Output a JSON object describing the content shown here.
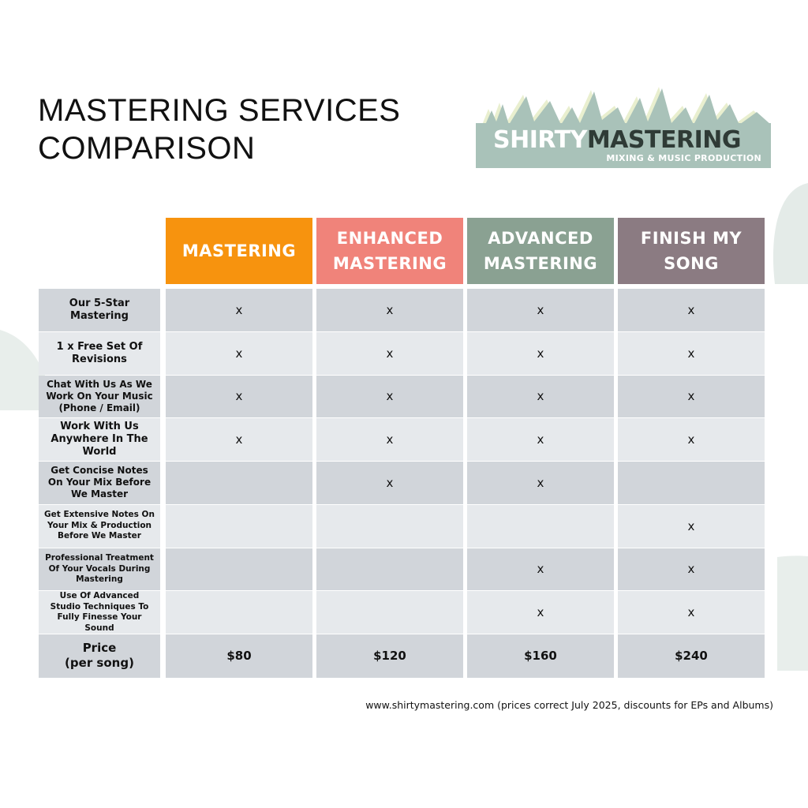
{
  "title_lines": [
    "MASTERING SERVICES",
    "COMPARISON"
  ],
  "logo": {
    "name_light": "SHIRTY",
    "name_dark": "MASTERING",
    "tagline": "MIXING & MUSIC PRODUCTION",
    "colors": {
      "box": "#a9c2b9",
      "peaks": "#a9c2b9",
      "peak_shadow": "#e9efcf",
      "dark_text": "#2f3b36"
    }
  },
  "columns": [
    {
      "lines": [
        "MASTERING"
      ],
      "color": "#f7930e"
    },
    {
      "lines": [
        "ENHANCED",
        "MASTERING"
      ],
      "color": "#f0837a"
    },
    {
      "lines": [
        "ADVANCED",
        "MASTERING"
      ],
      "color": "#8aa192"
    },
    {
      "lines": [
        "FINISH MY",
        "SONG"
      ],
      "color": "#8b7b82"
    }
  ],
  "rows": [
    {
      "label_lines": [
        "Our 5-Star",
        "Mastering"
      ],
      "marks": [
        "x",
        "x",
        "x",
        "x"
      ]
    },
    {
      "label_lines": [
        "1 x Free Set Of",
        "Revisions"
      ],
      "marks": [
        "x",
        "x",
        "x",
        "x"
      ]
    },
    {
      "label_lines": [
        "Chat With Us As We",
        "Work On Your Music",
        "(Phone / Email)"
      ],
      "marks": [
        "x",
        "x",
        "x",
        "x"
      ]
    },
    {
      "label_lines": [
        "Work With Us",
        "Anywhere In The",
        "World"
      ],
      "marks": [
        "x",
        "x",
        "x",
        "x"
      ]
    },
    {
      "label_lines": [
        "Get Concise Notes",
        "On Your Mix Before",
        "We Master"
      ],
      "marks": [
        "",
        "x",
        "x",
        ""
      ]
    },
    {
      "label_lines": [
        "Get Extensive Notes On",
        "Your Mix & Production",
        "Before We Master"
      ],
      "marks": [
        "",
        "",
        "",
        "x"
      ]
    },
    {
      "label_lines": [
        "Professional Treatment",
        "Of Your Vocals During",
        "Mastering"
      ],
      "marks": [
        "",
        "",
        "x",
        "x"
      ]
    },
    {
      "label_lines": [
        "Use Of Advanced",
        "Studio Techniques To",
        "Fully Finesse Your",
        "Sound"
      ],
      "marks": [
        "",
        "",
        "x",
        "x"
      ]
    }
  ],
  "price_row": {
    "label_lines": [
      "Price",
      "(per song)"
    ],
    "values": [
      "$80",
      "$120",
      "$160",
      "$240"
    ]
  },
  "row_colors": {
    "dark": "#d1d5da",
    "light": "#e6e9ec"
  },
  "footer": "www.shirtymastering.com (prices correct July 2025, discounts for EPs and Albums)"
}
